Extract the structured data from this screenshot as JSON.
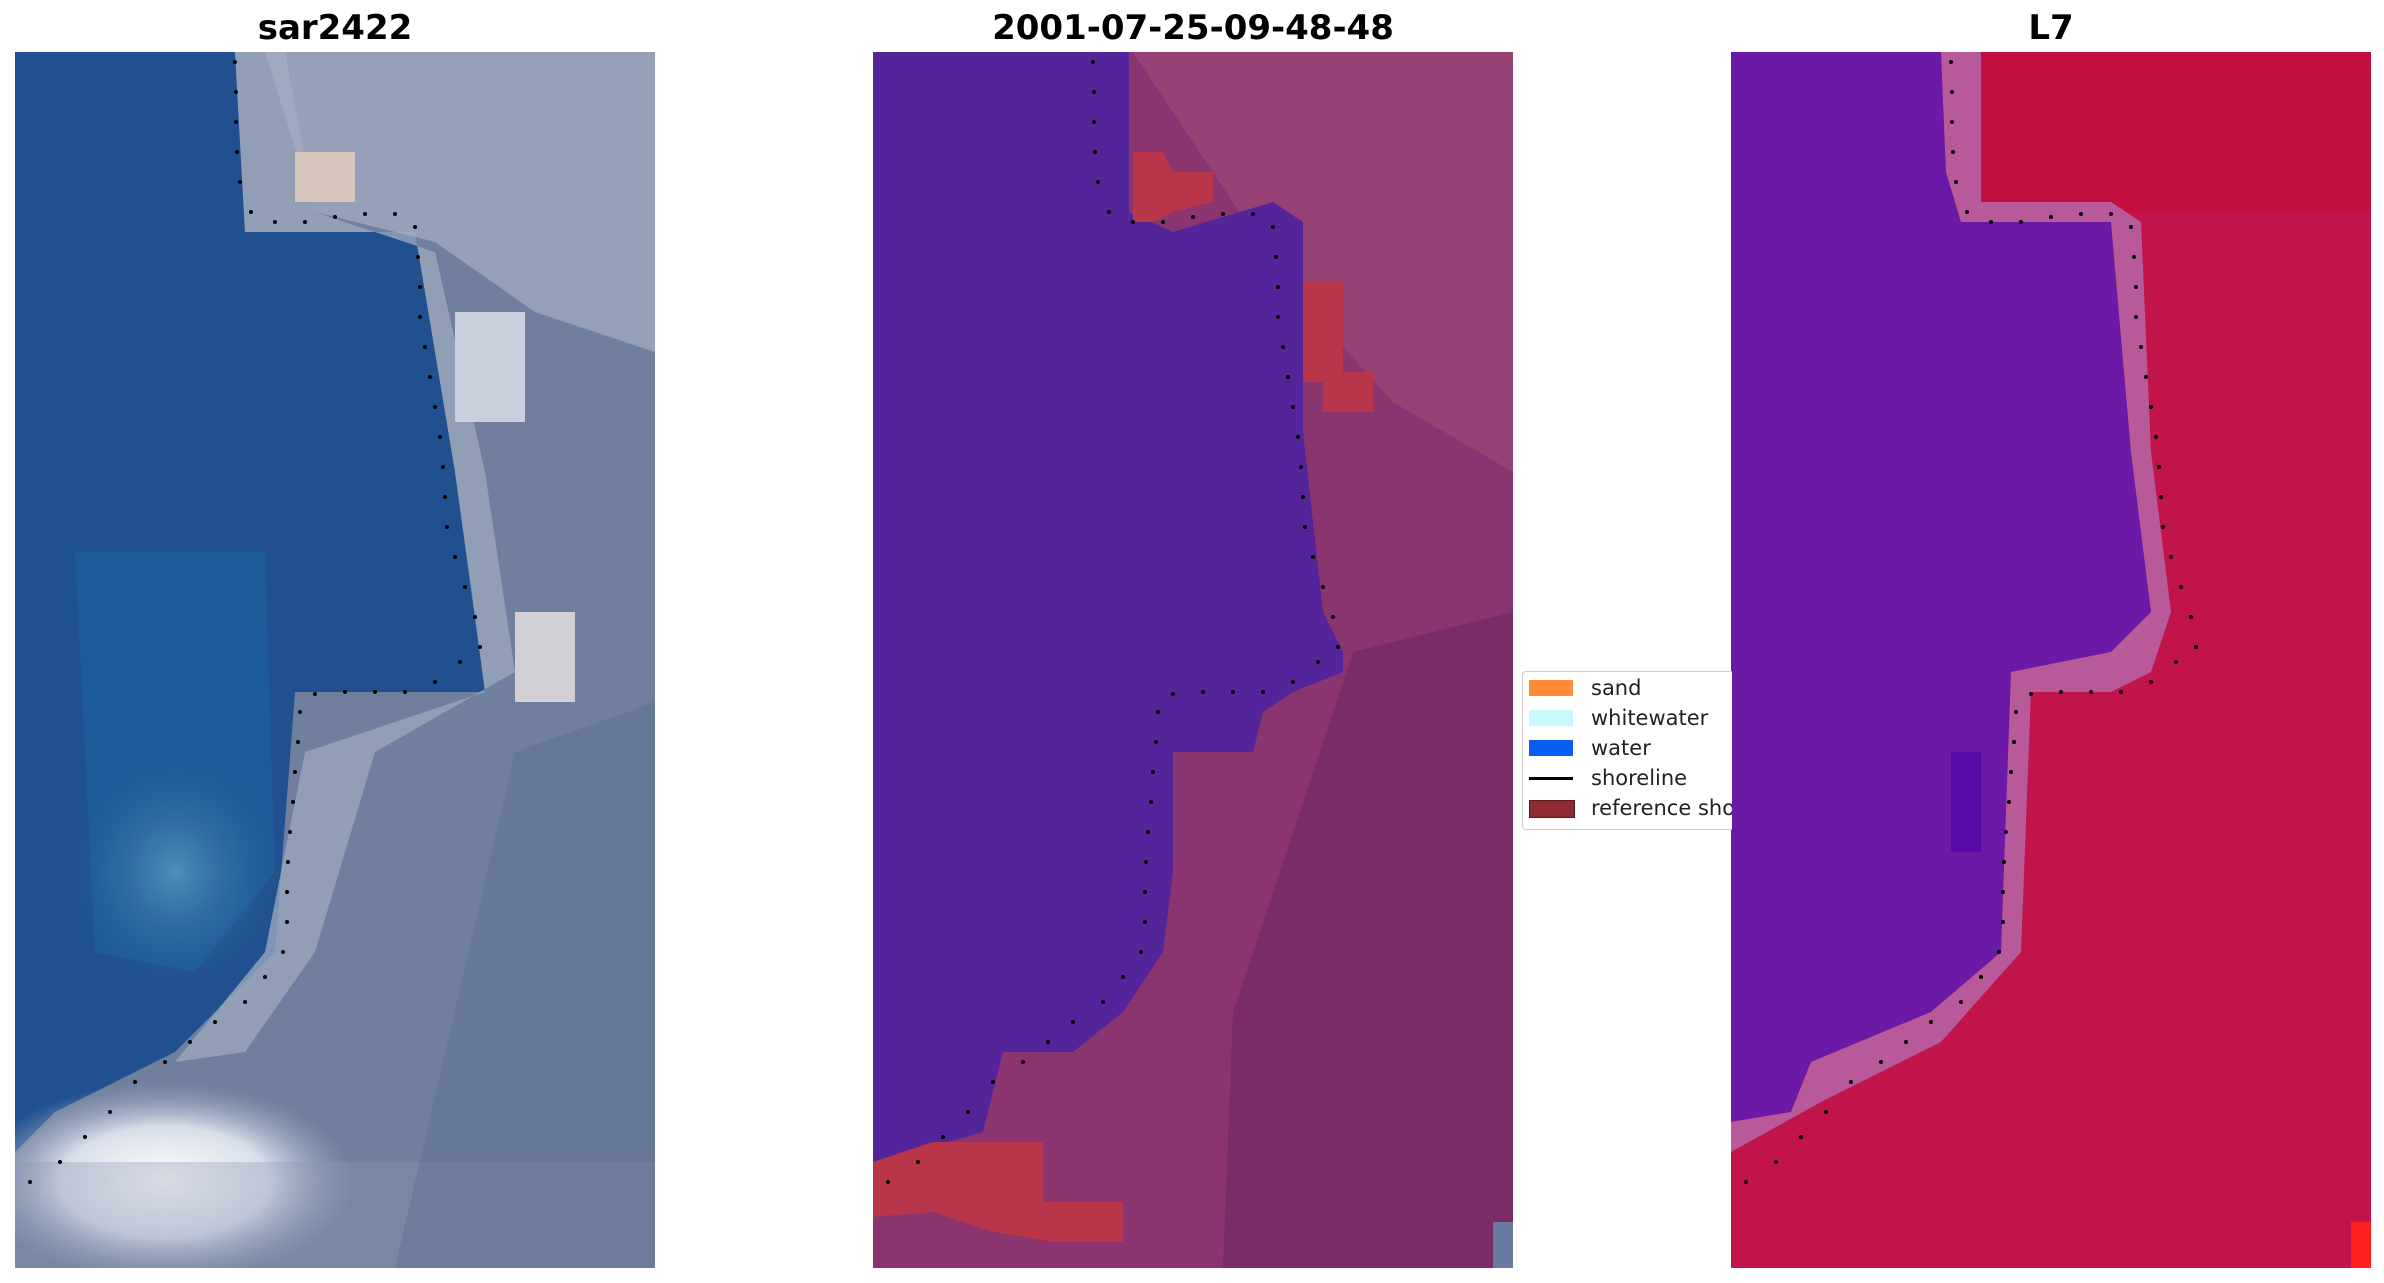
{
  "titles": {
    "left": "sar2422",
    "center": "2001-07-25-09-48-48",
    "right": "L7"
  },
  "legend": {
    "items": [
      {
        "label": "sand",
        "color": "#ff8c3a",
        "kind": "patch"
      },
      {
        "label": "whitewater",
        "color": "#c8fafc",
        "kind": "patch"
      },
      {
        "label": "water",
        "color": "#0a5cf5",
        "kind": "patch"
      },
      {
        "label": "shoreline",
        "color": "#000000",
        "kind": "line"
      },
      {
        "label": "reference shoreline",
        "color": "#8e2a33",
        "kind": "patch"
      }
    ]
  },
  "colors": {
    "rgb_water": "#1f4f8e",
    "rgb_land": "#6e7e9c",
    "rgb_cloud": "#dfe4ee",
    "classified_water": "#54249a",
    "classified_land": "#8a3570",
    "classified_reference": "#b8354a",
    "mndwi_water": "#6a1aa6",
    "mndwi_land": "#c0144a",
    "shoreline_dots": "#000000"
  }
}
